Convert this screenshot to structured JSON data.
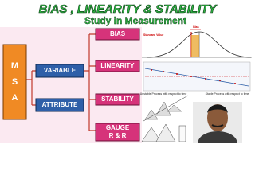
{
  "header": {
    "title": "BIAS , LINEARITY & STABILITY",
    "subtitle": "Study in Measurement"
  },
  "nodes": [
    {
      "label": "M S A"
    },
    {
      "label": "VARIABLE"
    },
    {
      "label": "ATTRIBUTE"
    },
    {
      "label": "BIAS"
    },
    {
      "label": "LINEARITY"
    },
    {
      "label": "STABILITY"
    },
    {
      "label": "GAUGE"
    },
    {
      "label": "R & R"
    }
  ],
  "annotations": {
    "standard_value": "Standard Value",
    "bias": "Bias",
    "unstable": "Unstable Process with respect to time",
    "stable": "Stable Process with respect to time"
  }
}
